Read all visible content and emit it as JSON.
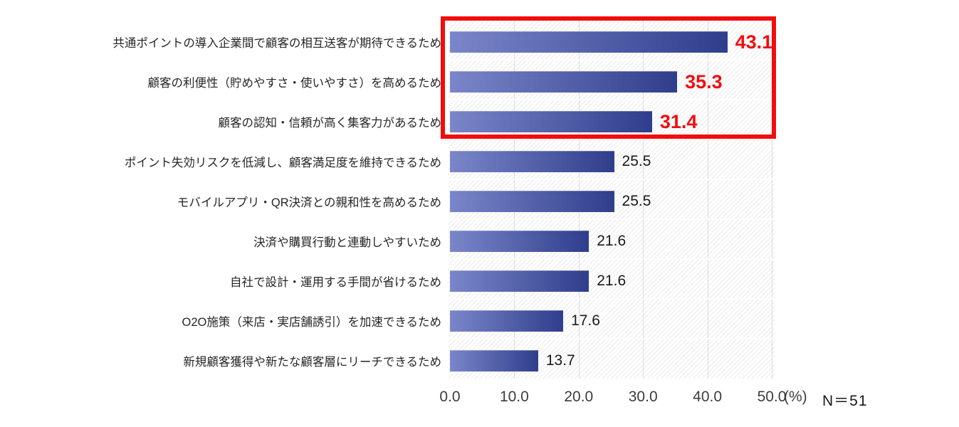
{
  "chart_data": {
    "type": "bar",
    "orientation": "horizontal",
    "title": "",
    "categories": [
      "共通ポイントの導入企業間で顧客の相互送客が期待できるため",
      "顧客の利便性（貯めやすさ・使いやすさ）を高めるため",
      "顧客の認知・信頼が高く集客力があるため",
      "ポイント失効リスクを低減し、顧客満足度を維持できるため",
      "モバイルアプリ・QR決済との親和性を高めるため",
      "決済や購買行動と連動しやすいため",
      "自社で設計・運用する手間が省けるため",
      "O2O施策（来店・実店舗誘引）を加速できるため",
      "新規顧客獲得や新たな顧客層にリーチできるため"
    ],
    "values": [
      43.1,
      35.3,
      31.4,
      25.5,
      25.5,
      21.6,
      21.6,
      17.6,
      13.7
    ],
    "xlim": [
      0,
      50
    ],
    "x_ticks": [
      "0.0",
      "10.0",
      "20.0",
      "30.0",
      "40.0",
      "50.0"
    ],
    "unit_label": "(%)",
    "sample_size_label": "N＝51",
    "grid": true,
    "highlighted_rows": [
      0,
      1,
      2
    ],
    "highlight_color": "#f20d0d",
    "bar_gradient_start": "#7b86c9",
    "bar_gradient_end": "#2f3e8c",
    "value_label_color": "#1a1a1a",
    "legend": null
  }
}
